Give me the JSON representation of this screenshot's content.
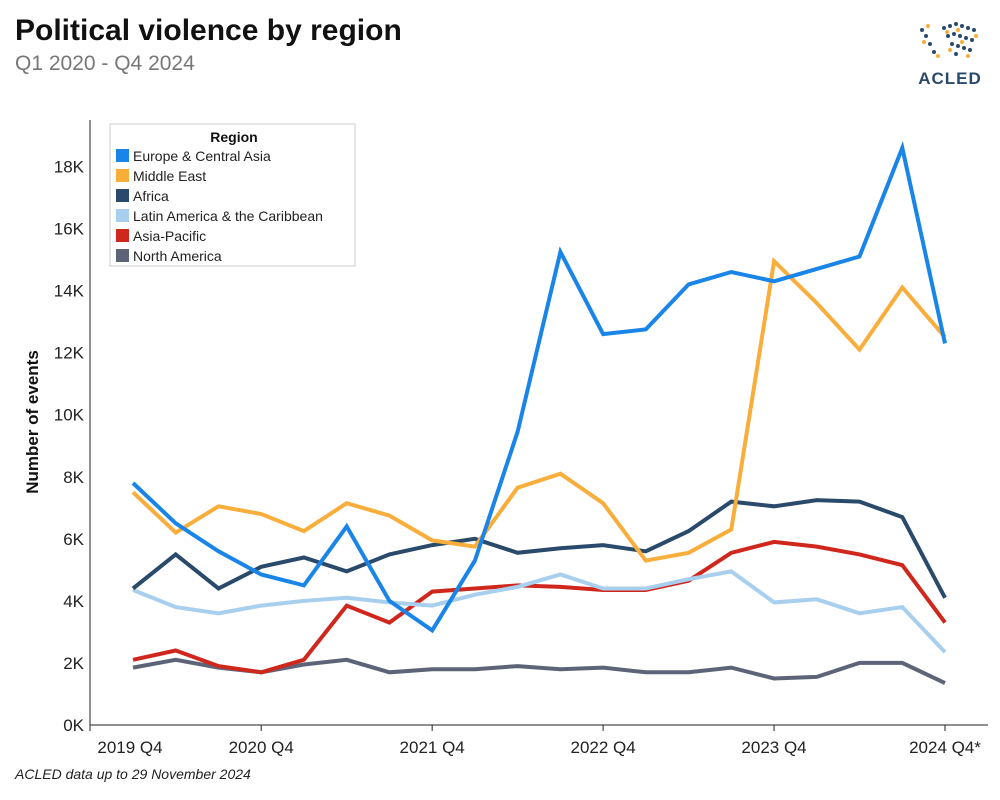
{
  "header": {
    "title": "Political violence by region",
    "subtitle": "Q1 2020 - Q4 2024"
  },
  "logo": {
    "text": "ACLED"
  },
  "footnote": "ACLED data up to 29 November 2024",
  "chart_data": {
    "type": "line",
    "title": "Political violence by region",
    "subtitle": "Q1 2020 - Q4 2024",
    "xlabel": "",
    "ylabel": "Number of events",
    "ylim": [
      0,
      19500
    ],
    "y_ticks": [
      0,
      2000,
      4000,
      6000,
      8000,
      10000,
      12000,
      14000,
      16000,
      18000
    ],
    "y_tick_labels": [
      "0K",
      "2K",
      "4K",
      "6K",
      "8K",
      "10K",
      "12K",
      "14K",
      "16K",
      "18K"
    ],
    "x": [
      "2020 Q1",
      "2020 Q2",
      "2020 Q3",
      "2020 Q4",
      "2021 Q1",
      "2021 Q2",
      "2021 Q3",
      "2021 Q4",
      "2022 Q1",
      "2022 Q2",
      "2022 Q3",
      "2022 Q4",
      "2023 Q1",
      "2023 Q2",
      "2023 Q3",
      "2023 Q4",
      "2024 Q1",
      "2024 Q2",
      "2024 Q3",
      "2024 Q4"
    ],
    "x_ticks": [
      {
        "label": "2019 Q4",
        "pos": -1
      },
      {
        "label": "2020 Q4",
        "pos": 3
      },
      {
        "label": "2021 Q4",
        "pos": 7
      },
      {
        "label": "2022 Q4",
        "pos": 11
      },
      {
        "label": "2023 Q4",
        "pos": 15
      },
      {
        "label": "2024 Q4*",
        "pos": 19
      }
    ],
    "legend": {
      "title": "Region",
      "position": "top-left"
    },
    "grid": false,
    "series": [
      {
        "name": "Europe & Central Asia",
        "color": "#1a85e8",
        "values": [
          7800,
          6500,
          5600,
          4850,
          4500,
          6400,
          4000,
          3050,
          5300,
          9450,
          15250,
          12600,
          12750,
          14200,
          14600,
          14300,
          14700,
          15100,
          18600,
          12300
        ]
      },
      {
        "name": "Middle East",
        "color": "#f9ae3c",
        "values": [
          7500,
          6200,
          7050,
          6800,
          6250,
          7150,
          6750,
          5950,
          5750,
          7650,
          8100,
          7150,
          5300,
          5550,
          6300,
          14950,
          13600,
          12100,
          14100,
          12500
        ]
      },
      {
        "name": "Africa",
        "color": "#2a4a6b",
        "values": [
          4400,
          5500,
          4400,
          5100,
          5400,
          4950,
          5500,
          5800,
          6000,
          5550,
          5700,
          5800,
          5600,
          6250,
          7200,
          7050,
          7250,
          7200,
          6700,
          4100
        ]
      },
      {
        "name": "Latin America & the Caribbean",
        "color": "#a9cfee",
        "values": [
          4350,
          3800,
          3600,
          3850,
          4000,
          4100,
          3950,
          3850,
          4200,
          4450,
          4850,
          4400,
          4400,
          4700,
          4950,
          3950,
          4050,
          3600,
          3800,
          2350
        ]
      },
      {
        "name": "Asia-Pacific",
        "color": "#d0271d",
        "values": [
          2100,
          2400,
          1900,
          1700,
          2100,
          3850,
          3300,
          4300,
          4400,
          4500,
          4450,
          4350,
          4350,
          4650,
          5550,
          5900,
          5750,
          5500,
          5150,
          3300
        ]
      },
      {
        "name": "North America",
        "color": "#5e6478",
        "values": [
          1850,
          2100,
          1850,
          1700,
          1950,
          2100,
          1700,
          1800,
          1800,
          1900,
          1800,
          1850,
          1700,
          1700,
          1850,
          1500,
          1550,
          2000,
          2000,
          1350
        ]
      }
    ]
  }
}
